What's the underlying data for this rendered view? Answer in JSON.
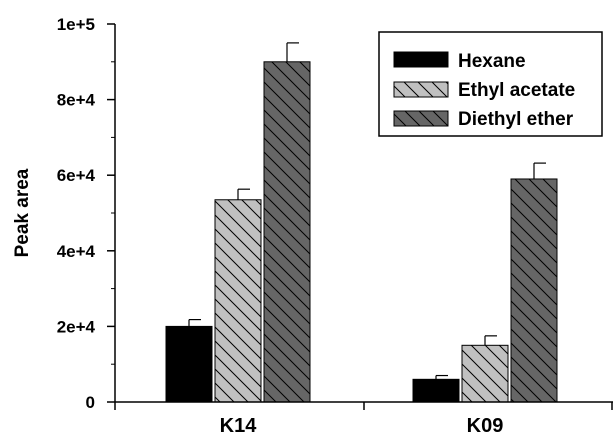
{
  "chart_data": {
    "type": "bar",
    "title": "",
    "xlabel": "",
    "ylabel": "Peak area",
    "ylim": [
      0,
      100000
    ],
    "yticks": [
      {
        "value": 0,
        "label": "0"
      },
      {
        "value": 20000,
        "label": "2e+4"
      },
      {
        "value": 40000,
        "label": "4e+4"
      },
      {
        "value": 60000,
        "label": "6e+4"
      },
      {
        "value": 80000,
        "label": "8e+4"
      },
      {
        "value": 100000,
        "label": "1e+5"
      }
    ],
    "categories": [
      "K14",
      "K09"
    ],
    "series": [
      {
        "name": "Hexane",
        "color": "#000000",
        "pattern": "solid",
        "values": [
          20000,
          6000
        ],
        "errors": [
          1800,
          1000
        ]
      },
      {
        "name": "Ethyl acetate",
        "color": "#c0c0c0",
        "pattern": "hatch",
        "values": [
          53500,
          15000
        ],
        "errors": [
          2800,
          2500
        ]
      },
      {
        "name": "Diethyl ether",
        "color": "#666666",
        "pattern": "hatch",
        "values": [
          90000,
          59000
        ],
        "errors": [
          5000,
          4200
        ]
      }
    ],
    "legend": "top-right",
    "grid": false
  }
}
